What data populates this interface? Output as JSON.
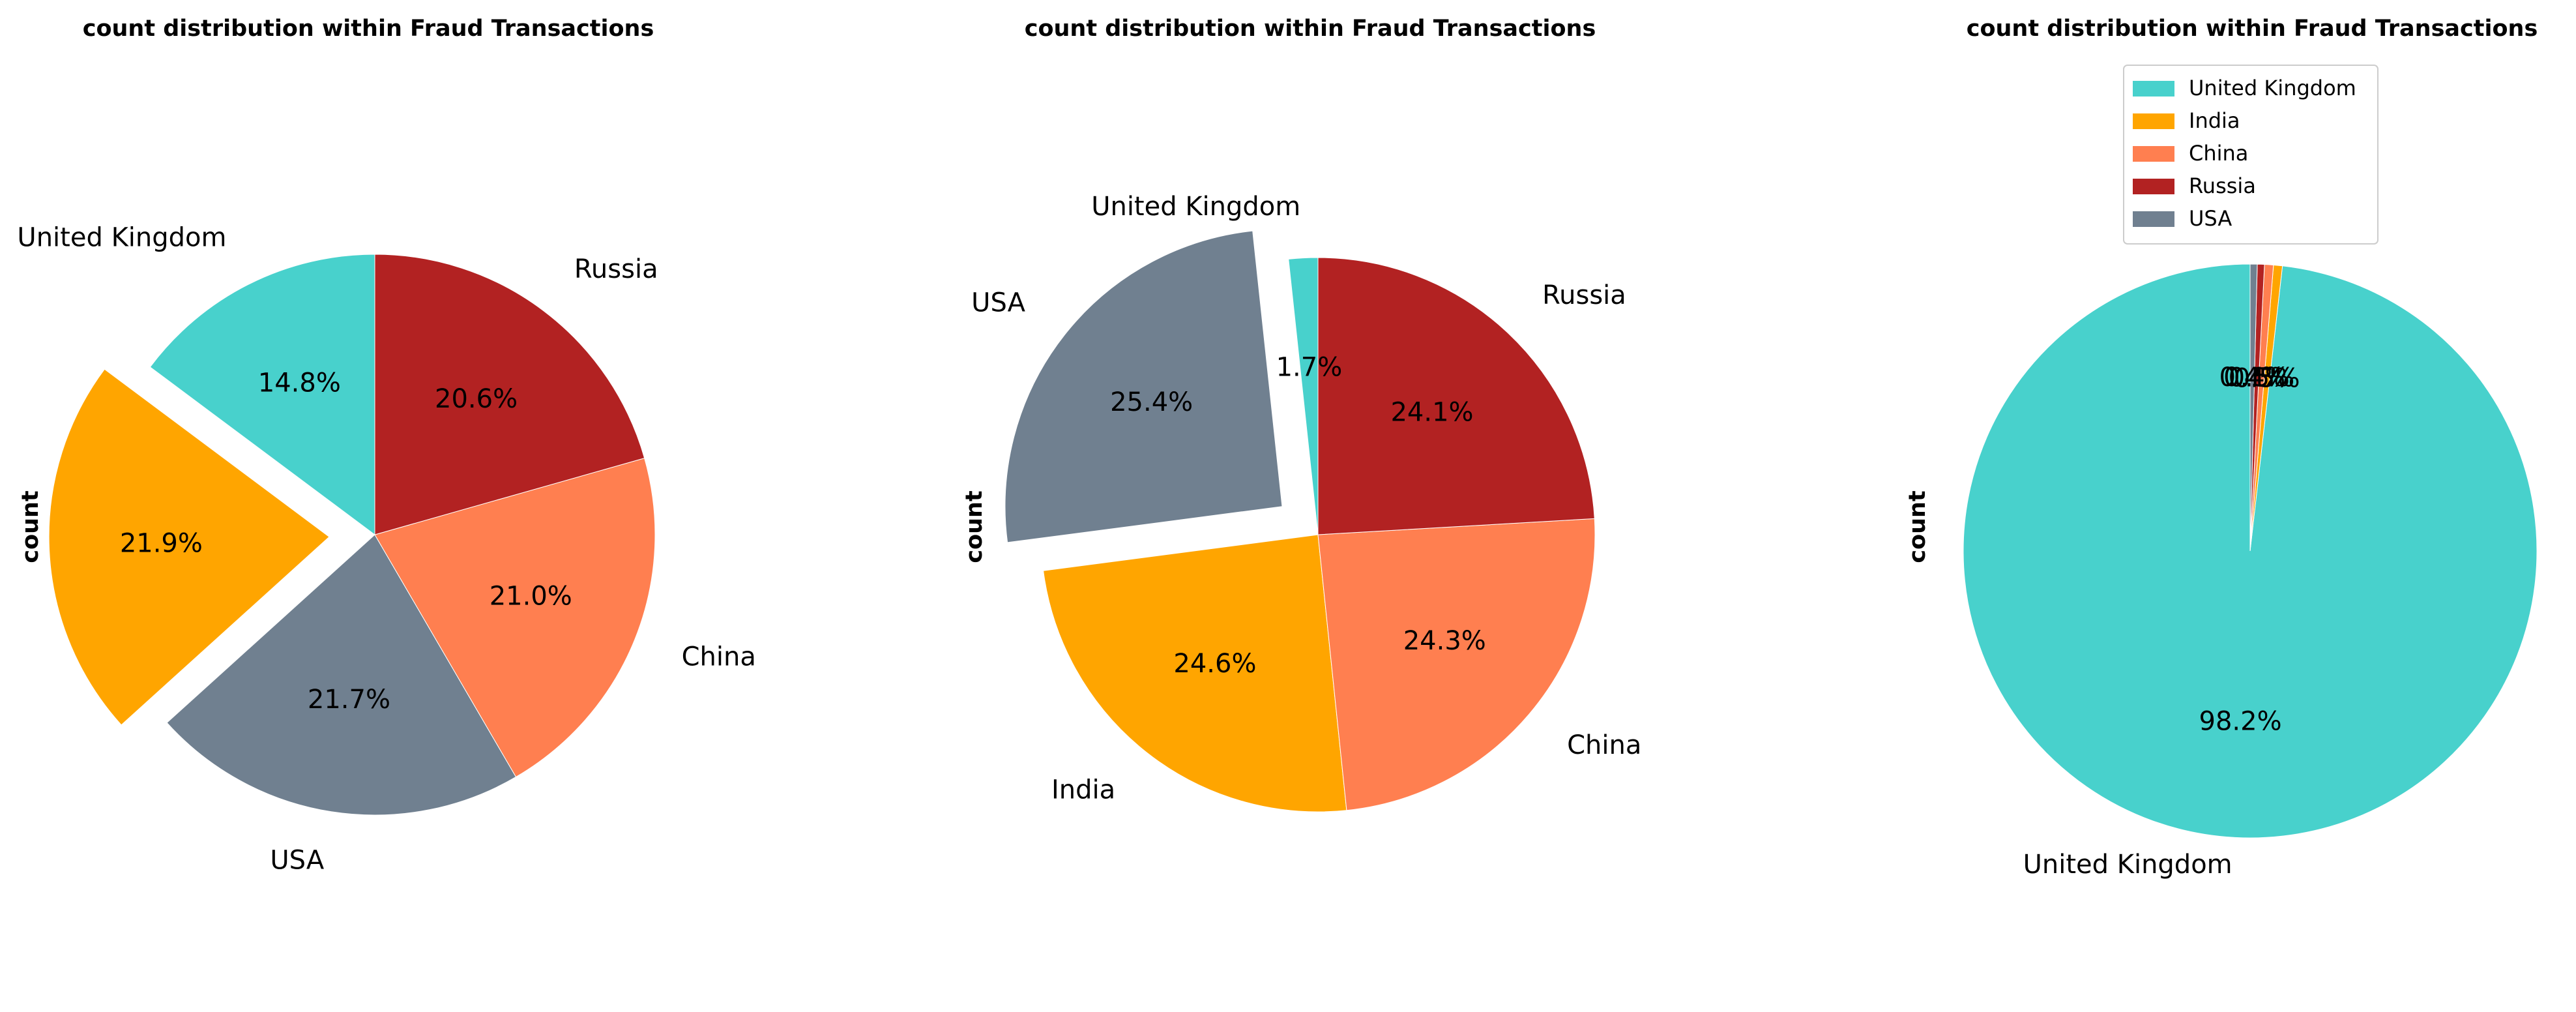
{
  "colors": {
    "United Kingdom": "#48d1cc",
    "India": "#ffa500",
    "China": "#ff7f50",
    "Russia": "#b22222",
    "USA": "#708090"
  },
  "chart_data": [
    {
      "type": "pie",
      "title": "count distribution within Fraud Transactions",
      "ylabel": "count",
      "slices": [
        {
          "label": "United Kingdom",
          "value": 14.8,
          "pct_text": "14.8%"
        },
        {
          "label": "India",
          "value": 21.9,
          "pct_text": "21.9%"
        },
        {
          "label": "USA",
          "value": 21.7,
          "pct_text": "21.7%"
        },
        {
          "label": "China",
          "value": 21.0,
          "pct_text": "21.0%"
        },
        {
          "label": "Russia",
          "value": 20.6,
          "pct_text": "20.6%"
        }
      ],
      "exploded": [
        "India"
      ],
      "legend": null
    },
    {
      "type": "pie",
      "title": "count distribution within Fraud Transactions",
      "ylabel": "count",
      "slices": [
        {
          "label": "United Kingdom",
          "value": 1.7,
          "pct_text": "1.7%"
        },
        {
          "label": "USA",
          "value": 25.4,
          "pct_text": "25.4%"
        },
        {
          "label": "India",
          "value": 24.6,
          "pct_text": "24.6%"
        },
        {
          "label": "China",
          "value": 24.3,
          "pct_text": "24.3%"
        },
        {
          "label": "Russia",
          "value": 24.1,
          "pct_text": "24.1%"
        }
      ],
      "exploded": [
        "USA"
      ],
      "legend": null
    },
    {
      "type": "pie",
      "title": "count distribution within Fraud Transactions",
      "ylabel": "count",
      "slices": [
        {
          "label": "United Kingdom",
          "value": 98.2,
          "pct_text": "98.2%"
        },
        {
          "label": "India",
          "value": 0.5,
          "pct_text": "0.5%"
        },
        {
          "label": "China",
          "value": 0.5,
          "pct_text": "0.5%"
        },
        {
          "label": "Russia",
          "value": 0.4,
          "pct_text": "0.4%"
        },
        {
          "label": "USA",
          "value": 0.4,
          "pct_text": "0.4%"
        }
      ],
      "exploded": [],
      "legend": {
        "placement": "upper-center",
        "entries": [
          "United Kingdom",
          "India",
          "China",
          "Russia",
          "USA"
        ]
      }
    }
  ]
}
